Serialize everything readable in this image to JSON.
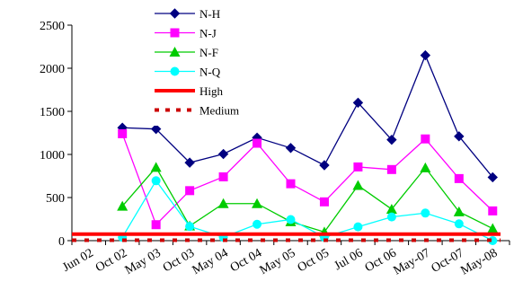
{
  "chart_data": {
    "type": "line",
    "title": "",
    "xlabel": "",
    "ylabel": "",
    "ylim": [
      0,
      2500
    ],
    "y_ticks": [
      0,
      500,
      1000,
      1500,
      2000,
      2500
    ],
    "grid": false,
    "legend_position": "top-center",
    "categories": [
      "Jun 02",
      "Oct 02",
      "May 03",
      "Oct 03",
      "May 04",
      "Oct 04",
      "May 05",
      "Oct 05",
      "Jul 06",
      "Oct 06",
      "May-07",
      "Oct-07",
      "May-08"
    ],
    "x_tick_labels": [
      "Jun 02",
      "Oct 02",
      "May 03",
      "Oct 03",
      "May 04",
      "Oct 04",
      "May 05",
      "Oct 05",
      "Jul 06",
      "Oct 06",
      "May-07",
      "Oct-07",
      "May-08"
    ],
    "series": [
      {
        "name": "N-H",
        "color": "#000080",
        "marker": "diamond",
        "values": [
          null,
          1310,
          1295,
          905,
          1005,
          1195,
          1075,
          875,
          1600,
          1170,
          2150,
          1210,
          735
        ]
      },
      {
        "name": "N-J",
        "color": "#ff00ff",
        "marker": "square",
        "values": [
          null,
          1240,
          185,
          580,
          740,
          1130,
          660,
          450,
          855,
          825,
          1180,
          720,
          345
        ]
      },
      {
        "name": "N-F",
        "color": "#00cc00",
        "marker": "triangle",
        "values": [
          null,
          400,
          850,
          170,
          430,
          430,
          220,
          100,
          640,
          365,
          845,
          335,
          140
        ]
      },
      {
        "name": "N-Q",
        "color": "#00ffff",
        "marker": "circle",
        "values": [
          null,
          40,
          695,
          165,
          40,
          190,
          245,
          40,
          160,
          275,
          320,
          195,
          0
        ]
      },
      {
        "name": "High",
        "color": "#ff0000",
        "style": "solid-thick",
        "values": [
          75,
          75,
          75,
          75,
          75,
          75,
          75,
          75,
          75,
          75,
          75,
          75,
          75
        ]
      },
      {
        "name": "Medium",
        "color": "#cc0000",
        "style": "dotted-thick",
        "values": [
          5,
          5,
          5,
          5,
          5,
          5,
          5,
          5,
          5,
          5,
          5,
          5,
          5
        ]
      }
    ]
  }
}
